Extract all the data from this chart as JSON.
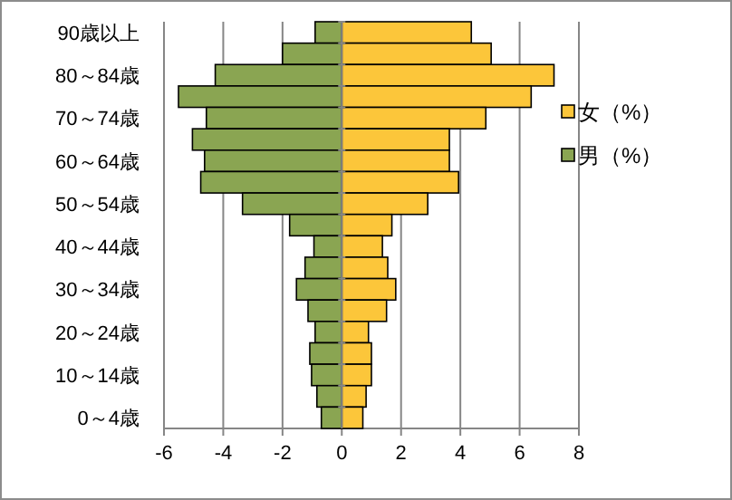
{
  "chart_data": {
    "type": "bar",
    "orientation": "horizontal",
    "categories": [
      "90歳以上",
      null,
      "80～84歳",
      null,
      "70～74歳",
      null,
      "60～64歳",
      null,
      "50～54歳",
      null,
      "40～44歳",
      null,
      "30～34歳",
      null,
      "20～24歳",
      null,
      "10～14歳",
      null,
      "0～4歳"
    ],
    "series": [
      {
        "name": "女（%）",
        "color": "#fcc63a",
        "values": [
          4.37,
          5.04,
          7.16,
          6.39,
          4.86,
          3.63,
          3.63,
          3.94,
          2.9,
          1.69,
          1.37,
          1.55,
          1.82,
          1.51,
          0.9,
          1.0,
          1.0,
          0.82,
          0.71
        ]
      },
      {
        "name": "男（%）",
        "color": "#8aa552",
        "values": [
          -0.9,
          -2.0,
          -4.27,
          -5.51,
          -4.57,
          -5.04,
          -4.63,
          -4.76,
          -3.35,
          -1.76,
          -0.94,
          -1.24,
          -1.53,
          -1.14,
          -0.9,
          -1.08,
          -1.02,
          -0.84,
          -0.69
        ]
      }
    ],
    "stacked": true,
    "xlim": [
      -6,
      8
    ],
    "xticks": [
      -6,
      -4,
      -2,
      0,
      2,
      4,
      6,
      8
    ],
    "grid": "x",
    "legend": "right"
  }
}
